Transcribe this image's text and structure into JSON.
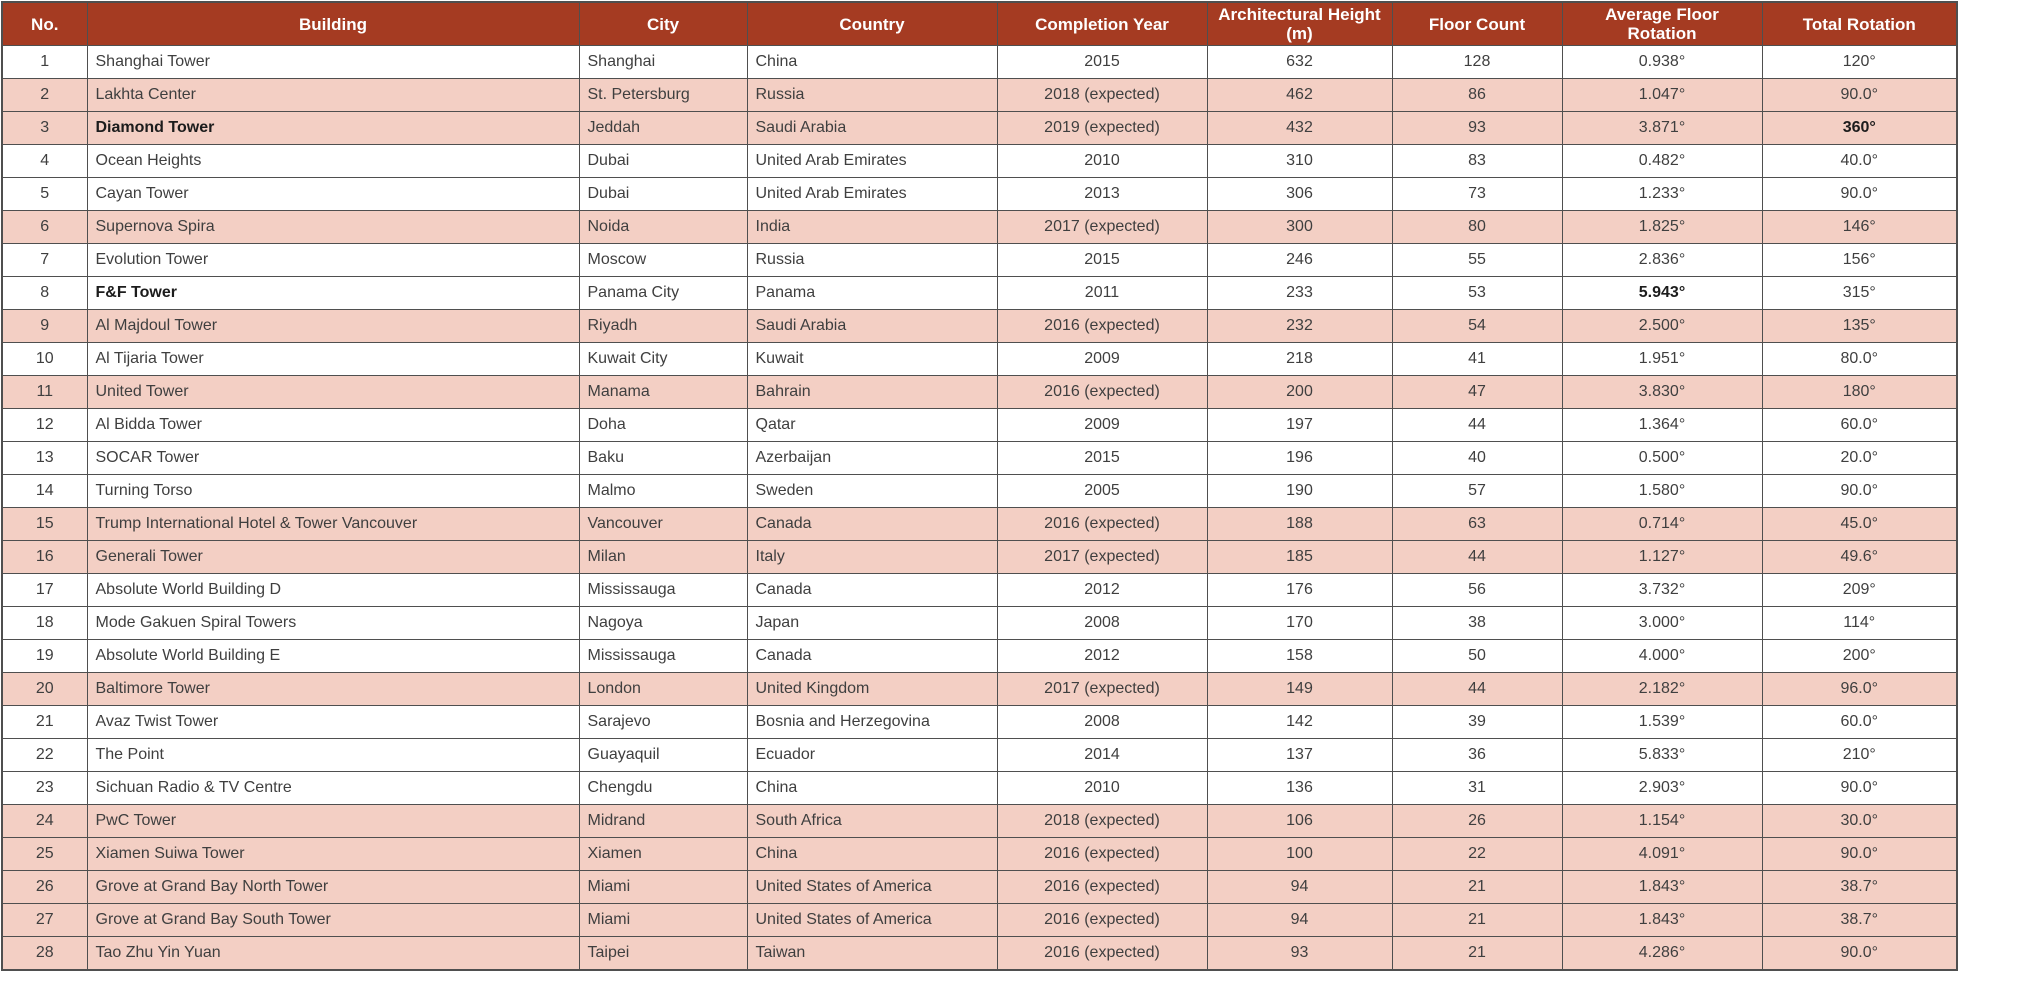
{
  "chart_data": {
    "type": "table",
    "legend": {
      "highlight_meaning": "rows shaded pink have expected (future) completion years"
    },
    "columns": [
      {
        "key": "no",
        "label": "No."
      },
      {
        "key": "building",
        "label": "Building"
      },
      {
        "key": "city",
        "label": "City"
      },
      {
        "key": "country",
        "label": "Country"
      },
      {
        "key": "completion_year",
        "label": "Completion Year"
      },
      {
        "key": "height_m",
        "label": "Architectural Height (m)"
      },
      {
        "key": "floor_count",
        "label": "Floor Count"
      },
      {
        "key": "avg_floor_rotation",
        "label": "Average Floor Rotation"
      },
      {
        "key": "total_rotation",
        "label": "Total Rotation"
      }
    ],
    "rows": [
      {
        "no": "1",
        "building": "Shanghai Tower",
        "city": "Shanghai",
        "country": "China",
        "completion_year": "2015",
        "height_m": "632",
        "floor_count": "128",
        "avg_floor_rotation": "0.938°",
        "total_rotation": "120°",
        "highlight": false,
        "emphasis": []
      },
      {
        "no": "2",
        "building": "Lakhta Center",
        "city": "St. Petersburg",
        "country": "Russia",
        "completion_year": "2018 (expected)",
        "height_m": "462",
        "floor_count": "86",
        "avg_floor_rotation": "1.047°",
        "total_rotation": "90.0°",
        "highlight": true,
        "emphasis": []
      },
      {
        "no": "3",
        "building": "Diamond Tower",
        "city": "Jeddah",
        "country": "Saudi Arabia",
        "completion_year": "2019 (expected)",
        "height_m": "432",
        "floor_count": "93",
        "avg_floor_rotation": "3.871°",
        "total_rotation": "360°",
        "highlight": true,
        "emphasis": [
          "building",
          "total_rotation"
        ]
      },
      {
        "no": "4",
        "building": "Ocean Heights",
        "city": "Dubai",
        "country": "United Arab Emirates",
        "completion_year": "2010",
        "height_m": "310",
        "floor_count": "83",
        "avg_floor_rotation": "0.482°",
        "total_rotation": "40.0°",
        "highlight": false,
        "emphasis": []
      },
      {
        "no": "5",
        "building": "Cayan Tower",
        "city": "Dubai",
        "country": "United Arab Emirates",
        "completion_year": "2013",
        "height_m": "306",
        "floor_count": "73",
        "avg_floor_rotation": "1.233°",
        "total_rotation": "90.0°",
        "highlight": false,
        "emphasis": []
      },
      {
        "no": "6",
        "building": "Supernova Spira",
        "city": "Noida",
        "country": "India",
        "completion_year": "2017 (expected)",
        "height_m": "300",
        "floor_count": "80",
        "avg_floor_rotation": "1.825°",
        "total_rotation": "146°",
        "highlight": true,
        "emphasis": []
      },
      {
        "no": "7",
        "building": "Evolution Tower",
        "city": "Moscow",
        "country": "Russia",
        "completion_year": "2015",
        "height_m": "246",
        "floor_count": "55",
        "avg_floor_rotation": "2.836°",
        "total_rotation": "156°",
        "highlight": false,
        "emphasis": []
      },
      {
        "no": "8",
        "building": "F&F Tower",
        "city": "Panama City",
        "country": "Panama",
        "completion_year": "2011",
        "height_m": "233",
        "floor_count": "53",
        "avg_floor_rotation": "5.943°",
        "total_rotation": "315°",
        "highlight": false,
        "emphasis": [
          "building",
          "avg_floor_rotation"
        ]
      },
      {
        "no": "9",
        "building": "Al Majdoul Tower",
        "city": "Riyadh",
        "country": "Saudi Arabia",
        "completion_year": "2016 (expected)",
        "height_m": "232",
        "floor_count": "54",
        "avg_floor_rotation": "2.500°",
        "total_rotation": "135°",
        "highlight": true,
        "emphasis": []
      },
      {
        "no": "10",
        "building": "Al Tijaria Tower",
        "city": "Kuwait City",
        "country": "Kuwait",
        "completion_year": "2009",
        "height_m": "218",
        "floor_count": "41",
        "avg_floor_rotation": "1.951°",
        "total_rotation": "80.0°",
        "highlight": false,
        "emphasis": []
      },
      {
        "no": "11",
        "building": "United Tower",
        "city": "Manama",
        "country": "Bahrain",
        "completion_year": "2016 (expected)",
        "height_m": "200",
        "floor_count": "47",
        "avg_floor_rotation": "3.830°",
        "total_rotation": "180°",
        "highlight": true,
        "emphasis": []
      },
      {
        "no": "12",
        "building": "Al Bidda Tower",
        "city": "Doha",
        "country": "Qatar",
        "completion_year": "2009",
        "height_m": "197",
        "floor_count": "44",
        "avg_floor_rotation": "1.364°",
        "total_rotation": "60.0°",
        "highlight": false,
        "emphasis": []
      },
      {
        "no": "13",
        "building": "SOCAR Tower",
        "city": "Baku",
        "country": "Azerbaijan",
        "completion_year": "2015",
        "height_m": "196",
        "floor_count": "40",
        "avg_floor_rotation": "0.500°",
        "total_rotation": "20.0°",
        "highlight": false,
        "emphasis": []
      },
      {
        "no": "14",
        "building": "Turning Torso",
        "city": "Malmo",
        "country": "Sweden",
        "completion_year": "2005",
        "height_m": "190",
        "floor_count": "57",
        "avg_floor_rotation": "1.580°",
        "total_rotation": "90.0°",
        "highlight": false,
        "emphasis": []
      },
      {
        "no": "15",
        "building": "Trump International Hotel & Tower Vancouver",
        "city": "Vancouver",
        "country": "Canada",
        "completion_year": "2016 (expected)",
        "height_m": "188",
        "floor_count": "63",
        "avg_floor_rotation": "0.714°",
        "total_rotation": "45.0°",
        "highlight": true,
        "emphasis": []
      },
      {
        "no": "16",
        "building": "Generali Tower",
        "city": "Milan",
        "country": "Italy",
        "completion_year": "2017 (expected)",
        "height_m": "185",
        "floor_count": "44",
        "avg_floor_rotation": "1.127°",
        "total_rotation": "49.6°",
        "highlight": true,
        "emphasis": []
      },
      {
        "no": "17",
        "building": "Absolute World Building D",
        "city": "Mississauga",
        "country": "Canada",
        "completion_year": "2012",
        "height_m": "176",
        "floor_count": "56",
        "avg_floor_rotation": "3.732°",
        "total_rotation": "209°",
        "highlight": false,
        "emphasis": []
      },
      {
        "no": "18",
        "building": "Mode Gakuen Spiral Towers",
        "city": "Nagoya",
        "country": "Japan",
        "completion_year": "2008",
        "height_m": "170",
        "floor_count": "38",
        "avg_floor_rotation": "3.000°",
        "total_rotation": "114°",
        "highlight": false,
        "emphasis": []
      },
      {
        "no": "19",
        "building": "Absolute World Building E",
        "city": "Mississauga",
        "country": "Canada",
        "completion_year": "2012",
        "height_m": "158",
        "floor_count": "50",
        "avg_floor_rotation": "4.000°",
        "total_rotation": "200°",
        "highlight": false,
        "emphasis": []
      },
      {
        "no": "20",
        "building": "Baltimore Tower",
        "city": "London",
        "country": "United Kingdom",
        "completion_year": "2017 (expected)",
        "height_m": "149",
        "floor_count": "44",
        "avg_floor_rotation": "2.182°",
        "total_rotation": "96.0°",
        "highlight": true,
        "emphasis": []
      },
      {
        "no": "21",
        "building": "Avaz Twist Tower",
        "city": "Sarajevo",
        "country": "Bosnia and Herzegovina",
        "completion_year": "2008",
        "height_m": "142",
        "floor_count": "39",
        "avg_floor_rotation": "1.539°",
        "total_rotation": "60.0°",
        "highlight": false,
        "emphasis": []
      },
      {
        "no": "22",
        "building": "The Point",
        "city": "Guayaquil",
        "country": "Ecuador",
        "completion_year": "2014",
        "height_m": "137",
        "floor_count": "36",
        "avg_floor_rotation": "5.833°",
        "total_rotation": "210°",
        "highlight": false,
        "emphasis": []
      },
      {
        "no": "23",
        "building": "Sichuan Radio & TV Centre",
        "city": "Chengdu",
        "country": "China",
        "completion_year": "2010",
        "height_m": "136",
        "floor_count": "31",
        "avg_floor_rotation": "2.903°",
        "total_rotation": "90.0°",
        "highlight": false,
        "emphasis": []
      },
      {
        "no": "24",
        "building": "PwC Tower",
        "city": "Midrand",
        "country": "South Africa",
        "completion_year": "2018 (expected)",
        "height_m": "106",
        "floor_count": "26",
        "avg_floor_rotation": "1.154°",
        "total_rotation": "30.0°",
        "highlight": true,
        "emphasis": []
      },
      {
        "no": "25",
        "building": "Xiamen Suiwa Tower",
        "city": "Xiamen",
        "country": "China",
        "completion_year": "2016 (expected)",
        "height_m": "100",
        "floor_count": "22",
        "avg_floor_rotation": "4.091°",
        "total_rotation": "90.0°",
        "highlight": true,
        "emphasis": []
      },
      {
        "no": "26",
        "building": "Grove at Grand Bay North Tower",
        "city": "Miami",
        "country": "United States of America",
        "completion_year": "2016 (expected)",
        "height_m": "94",
        "floor_count": "21",
        "avg_floor_rotation": "1.843°",
        "total_rotation": "38.7°",
        "highlight": true,
        "emphasis": []
      },
      {
        "no": "27",
        "building": "Grove at Grand Bay South Tower",
        "city": "Miami",
        "country": "United States of America",
        "completion_year": "2016 (expected)",
        "height_m": "94",
        "floor_count": "21",
        "avg_floor_rotation": "1.843°",
        "total_rotation": "38.7°",
        "highlight": true,
        "emphasis": []
      },
      {
        "no": "28",
        "building": "Tao Zhu Yin Yuan",
        "city": "Taipei",
        "country": "Taiwan",
        "completion_year": "2016 (expected)",
        "height_m": "93",
        "floor_count": "21",
        "avg_floor_rotation": "4.286°",
        "total_rotation": "90.0°",
        "highlight": true,
        "emphasis": []
      }
    ]
  },
  "colors": {
    "header_bg": "#a53b22",
    "header_text": "#ffffff",
    "highlight_row_bg": "#f3cfc4",
    "default_row_bg": "#ffffff",
    "grid_border": "#4f4f4f",
    "body_text": "#3f3f3f"
  }
}
